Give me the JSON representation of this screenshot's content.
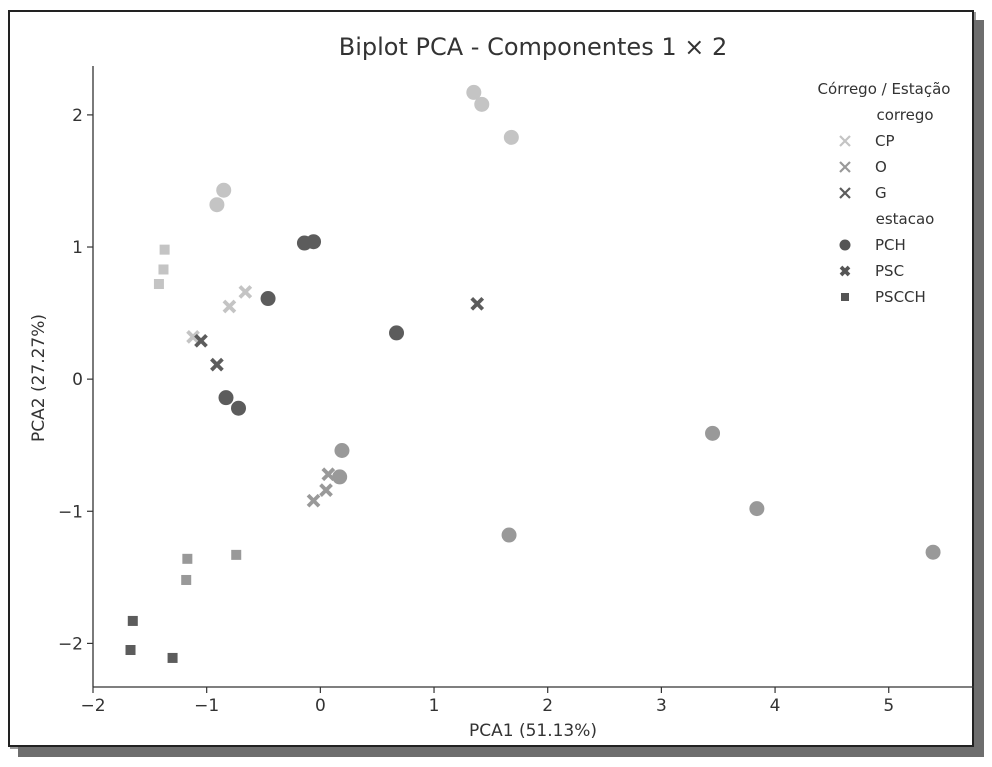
{
  "chart_data": {
    "type": "scatter",
    "title": "Biplot PCA - Componentes 1 × 2",
    "xlabel": "PCA1 (51.13%)",
    "ylabel": "PCA2 (27.27%)",
    "xlim": [
      -2.0,
      5.75
    ],
    "ylim": [
      -2.33,
      2.37
    ],
    "xticks": [
      -2,
      -1,
      0,
      1,
      2,
      3,
      4,
      5
    ],
    "xtick_labels": [
      "−2",
      "−1",
      "0",
      "1",
      "2",
      "3",
      "4",
      "5"
    ],
    "yticks": [
      -2,
      -1,
      0,
      1,
      2
    ],
    "ytick_labels": [
      "−2",
      "−1",
      "0",
      "1",
      "2"
    ],
    "grid": false,
    "legend": {
      "title": "Córrego / Estação",
      "position": "top-right",
      "sections": [
        {
          "header": "corrego",
          "entries": [
            {
              "label": "CP",
              "marker": "x",
              "color": "#c4c4c4"
            },
            {
              "label": "O",
              "marker": "x",
              "color": "#999999"
            },
            {
              "label": "G",
              "marker": "x",
              "color": "#5c5c5c"
            }
          ]
        },
        {
          "header": "estacao",
          "entries": [
            {
              "label": "PCH",
              "marker": "circle",
              "color": "#555555"
            },
            {
              "label": "PSC",
              "marker": "x-bold",
              "color": "#555555"
            },
            {
              "label": "PSCCH",
              "marker": "square",
              "color": "#555555"
            }
          ]
        }
      ]
    },
    "colors": {
      "CP": "#c4c4c4",
      "O": "#999999",
      "G": "#5c5c5c"
    },
    "points": [
      {
        "x": 1.35,
        "y": 2.17,
        "corrego": "CP",
        "estacao": "PCH"
      },
      {
        "x": 1.42,
        "y": 2.08,
        "corrego": "CP",
        "estacao": "PCH"
      },
      {
        "x": 1.68,
        "y": 1.83,
        "corrego": "CP",
        "estacao": "PCH"
      },
      {
        "x": -0.85,
        "y": 1.43,
        "corrego": "CP",
        "estacao": "PCH"
      },
      {
        "x": -0.91,
        "y": 1.32,
        "corrego": "CP",
        "estacao": "PCH"
      },
      {
        "x": -0.66,
        "y": 0.66,
        "corrego": "CP",
        "estacao": "PSC"
      },
      {
        "x": -0.8,
        "y": 0.55,
        "corrego": "CP",
        "estacao": "PSC"
      },
      {
        "x": -1.12,
        "y": 0.32,
        "corrego": "CP",
        "estacao": "PSC"
      },
      {
        "x": -1.37,
        "y": 0.98,
        "corrego": "CP",
        "estacao": "PSCCH"
      },
      {
        "x": -1.38,
        "y": 0.83,
        "corrego": "CP",
        "estacao": "PSCCH"
      },
      {
        "x": -1.42,
        "y": 0.72,
        "corrego": "CP",
        "estacao": "PSCCH"
      },
      {
        "x": 0.19,
        "y": -0.54,
        "corrego": "O",
        "estacao": "PCH"
      },
      {
        "x": 0.17,
        "y": -0.74,
        "corrego": "O",
        "estacao": "PCH"
      },
      {
        "x": 1.66,
        "y": -1.18,
        "corrego": "O",
        "estacao": "PCH"
      },
      {
        "x": 3.45,
        "y": -0.41,
        "corrego": "O",
        "estacao": "PCH"
      },
      {
        "x": 3.84,
        "y": -0.98,
        "corrego": "O",
        "estacao": "PCH"
      },
      {
        "x": 5.39,
        "y": -1.31,
        "corrego": "O",
        "estacao": "PCH"
      },
      {
        "x": 0.07,
        "y": -0.72,
        "corrego": "O",
        "estacao": "PSC"
      },
      {
        "x": 0.05,
        "y": -0.84,
        "corrego": "O",
        "estacao": "PSC"
      },
      {
        "x": -0.06,
        "y": -0.92,
        "corrego": "O",
        "estacao": "PSC"
      },
      {
        "x": -1.17,
        "y": -1.36,
        "corrego": "O",
        "estacao": "PSCCH"
      },
      {
        "x": -1.18,
        "y": -1.52,
        "corrego": "O",
        "estacao": "PSCCH"
      },
      {
        "x": -0.74,
        "y": -1.33,
        "corrego": "O",
        "estacao": "PSCCH"
      },
      {
        "x": -0.14,
        "y": 1.03,
        "corrego": "G",
        "estacao": "PCH"
      },
      {
        "x": -0.06,
        "y": 1.04,
        "corrego": "G",
        "estacao": "PCH"
      },
      {
        "x": -0.46,
        "y": 0.61,
        "corrego": "G",
        "estacao": "PCH"
      },
      {
        "x": 0.67,
        "y": 0.35,
        "corrego": "G",
        "estacao": "PCH"
      },
      {
        "x": -0.83,
        "y": -0.14,
        "corrego": "G",
        "estacao": "PCH"
      },
      {
        "x": -0.72,
        "y": -0.22,
        "corrego": "G",
        "estacao": "PCH"
      },
      {
        "x": 1.38,
        "y": 0.57,
        "corrego": "G",
        "estacao": "PSC"
      },
      {
        "x": -1.05,
        "y": 0.29,
        "corrego": "G",
        "estacao": "PSC"
      },
      {
        "x": -0.91,
        "y": 0.11,
        "corrego": "G",
        "estacao": "PSC"
      },
      {
        "x": -1.65,
        "y": -1.83,
        "corrego": "G",
        "estacao": "PSCCH"
      },
      {
        "x": -1.67,
        "y": -2.05,
        "corrego": "G",
        "estacao": "PSCCH"
      },
      {
        "x": -1.3,
        "y": -2.11,
        "corrego": "G",
        "estacao": "PSCCH"
      }
    ]
  }
}
